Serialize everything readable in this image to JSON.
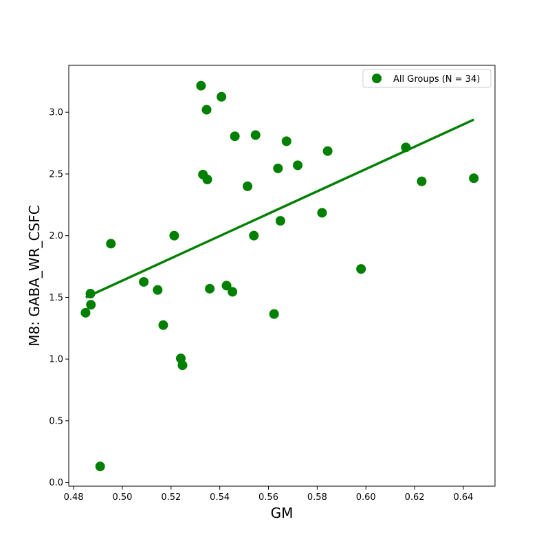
{
  "chart_data": {
    "type": "scatter",
    "title": "",
    "xlabel": "GM",
    "ylabel": "M8: GABA_WR_CSFC",
    "xlim": [
      0.478,
      0.653
    ],
    "ylim": [
      -0.03,
      3.38
    ],
    "xticks": [
      0.48,
      0.5,
      0.52,
      0.54,
      0.56,
      0.58,
      0.6,
      0.62,
      0.64
    ],
    "xtick_labels": [
      "0.48",
      "0.50",
      "0.52",
      "0.54",
      "0.56",
      "0.58",
      "0.60",
      "0.62",
      "0.64"
    ],
    "yticks": [
      0.0,
      0.5,
      1.0,
      1.5,
      2.0,
      2.5,
      3.0
    ],
    "ytick_labels": [
      "0.0",
      "0.5",
      "1.0",
      "1.5",
      "2.0",
      "2.5",
      "3.0"
    ],
    "grid": false,
    "legend_position": "top-right",
    "point_color": "#008000",
    "series": [
      {
        "name": "All Groups (N = 34)",
        "x": [
          0.4849,
          0.4869,
          0.4871,
          0.4909,
          0.4953,
          0.5088,
          0.5145,
          0.5168,
          0.5213,
          0.524,
          0.5247,
          0.5323,
          0.5331,
          0.5346,
          0.5349,
          0.5359,
          0.5407,
          0.5428,
          0.5452,
          0.5462,
          0.5514,
          0.554,
          0.5547,
          0.5623,
          0.5639,
          0.5649,
          0.5674,
          0.572,
          0.582,
          0.5843,
          0.598,
          0.6164,
          0.6229,
          0.6443
        ],
        "y": [
          1.375,
          1.53,
          1.44,
          0.13,
          1.935,
          1.625,
          1.56,
          1.275,
          2.0,
          1.005,
          0.95,
          3.215,
          2.495,
          3.02,
          2.455,
          1.57,
          3.125,
          1.595,
          1.545,
          2.805,
          2.4,
          2.0,
          2.815,
          1.365,
          2.545,
          2.12,
          2.765,
          2.57,
          2.185,
          2.685,
          1.73,
          2.715,
          2.44,
          2.465
        ]
      }
    ],
    "fit_line": {
      "x": [
        0.485,
        0.6443
      ],
      "y": [
        1.5,
        2.94
      ]
    }
  }
}
